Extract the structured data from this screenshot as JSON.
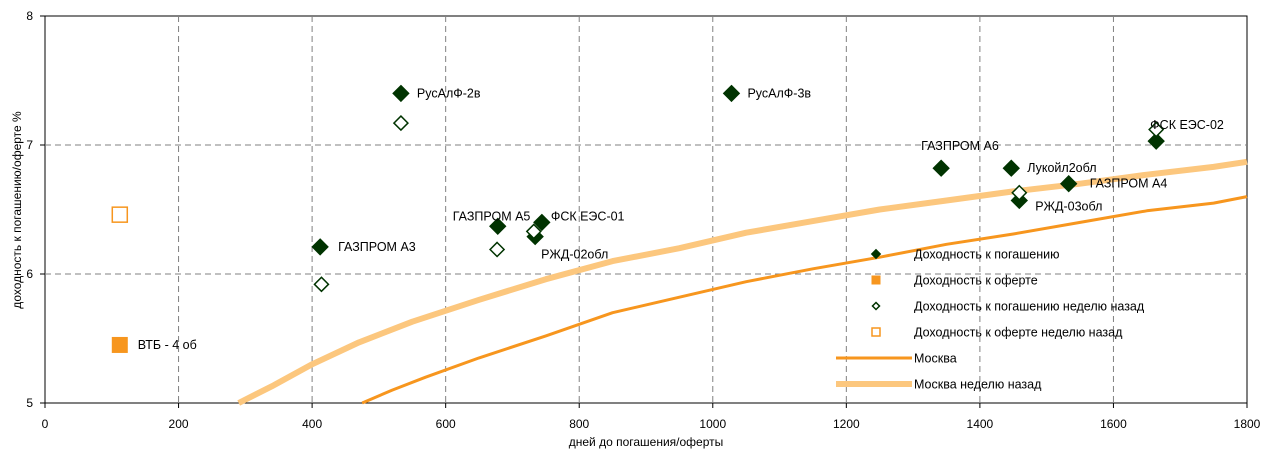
{
  "chart_data": {
    "type": "scatter",
    "title": "",
    "xlabel": "дней до погашения/оферты",
    "ylabel": "доходность к погашению/оферте %",
    "xlim": [
      0,
      1800
    ],
    "ylim": [
      5,
      8
    ],
    "xticks": [
      0,
      200,
      400,
      600,
      800,
      1000,
      1200,
      1400,
      1600,
      1800
    ],
    "yticks": [
      5,
      6,
      7,
      8
    ],
    "grid": true,
    "legend_position": "bottom-right",
    "colors": {
      "dark_green": "#003300",
      "orange": "#f7961e",
      "light_orange": "#fcc77e"
    },
    "series": [
      {
        "name": "Доходность к погашению",
        "marker": "diamond-filled",
        "color": "#003300",
        "points": [
          {
            "x": 412,
            "y": 6.21,
            "label": "ГАЗПРОМ А3"
          },
          {
            "x": 533,
            "y": 7.4,
            "label": "РусАлФ-2в"
          },
          {
            "x": 678,
            "y": 6.37,
            "label": "ГАЗПРОМ А5"
          },
          {
            "x": 734,
            "y": 6.29,
            "label": "РЖД-02обл"
          },
          {
            "x": 744,
            "y": 6.4,
            "label": "ФСК ЕЭС-01"
          },
          {
            "x": 1028,
            "y": 7.4,
            "label": "РусАлФ-3в"
          },
          {
            "x": 1342,
            "y": 6.82,
            "label": "ГАЗПРОМ А6"
          },
          {
            "x": 1447,
            "y": 6.82,
            "label": "Лукойл2обл"
          },
          {
            "x": 1459,
            "y": 6.57,
            "label": "РЖД-03обл"
          },
          {
            "x": 1533,
            "y": 6.7,
            "label": "ГАЗПРОМ А4"
          },
          {
            "x": 1664,
            "y": 7.03,
            "label": "ФСК ЕЭС-02"
          }
        ]
      },
      {
        "name": "Доходность к оферте",
        "marker": "square-filled",
        "color": "#f7961e",
        "points": [
          {
            "x": 112,
            "y": 5.45,
            "label": "ВТБ - 4 об"
          }
        ]
      },
      {
        "name": "Доходность к погашению неделю назад",
        "marker": "diamond-open",
        "color": "#003300",
        "points": [
          {
            "x": 414,
            "y": 5.92
          },
          {
            "x": 533,
            "y": 7.17
          },
          {
            "x": 677,
            "y": 6.19
          },
          {
            "x": 732,
            "y": 6.33
          },
          {
            "x": 1459,
            "y": 6.63
          },
          {
            "x": 1664,
            "y": 7.12
          }
        ]
      },
      {
        "name": "Доходность к оферте неделю назад",
        "marker": "square-open",
        "color": "#f7961e",
        "points": [
          {
            "x": 112,
            "y": 6.46
          }
        ]
      },
      {
        "name": "Москва",
        "marker": "line",
        "color": "#f7961e",
        "points": [
          {
            "x": 475,
            "y": 5.0
          },
          {
            "x": 520,
            "y": 5.1
          },
          {
            "x": 570,
            "y": 5.2
          },
          {
            "x": 650,
            "y": 5.35
          },
          {
            "x": 750,
            "y": 5.52
          },
          {
            "x": 850,
            "y": 5.7
          },
          {
            "x": 950,
            "y": 5.82
          },
          {
            "x": 1050,
            "y": 5.94
          },
          {
            "x": 1150,
            "y": 6.04
          },
          {
            "x": 1250,
            "y": 6.13
          },
          {
            "x": 1350,
            "y": 6.23
          },
          {
            "x": 1450,
            "y": 6.31
          },
          {
            "x": 1550,
            "y": 6.4
          },
          {
            "x": 1650,
            "y": 6.49
          },
          {
            "x": 1750,
            "y": 6.55
          },
          {
            "x": 1800,
            "y": 6.6
          }
        ]
      },
      {
        "name": "Москва неделю назад",
        "marker": "line",
        "color": "#fcc77e",
        "points": [
          {
            "x": 290,
            "y": 5.0
          },
          {
            "x": 340,
            "y": 5.13
          },
          {
            "x": 400,
            "y": 5.3
          },
          {
            "x": 470,
            "y": 5.47
          },
          {
            "x": 550,
            "y": 5.63
          },
          {
            "x": 650,
            "y": 5.8
          },
          {
            "x": 750,
            "y": 5.96
          },
          {
            "x": 850,
            "y": 6.1
          },
          {
            "x": 950,
            "y": 6.2
          },
          {
            "x": 1050,
            "y": 6.32
          },
          {
            "x": 1150,
            "y": 6.41
          },
          {
            "x": 1250,
            "y": 6.5
          },
          {
            "x": 1350,
            "y": 6.57
          },
          {
            "x": 1450,
            "y": 6.64
          },
          {
            "x": 1550,
            "y": 6.7
          },
          {
            "x": 1650,
            "y": 6.77
          },
          {
            "x": 1750,
            "y": 6.83
          },
          {
            "x": 1800,
            "y": 6.87
          }
        ]
      }
    ]
  }
}
